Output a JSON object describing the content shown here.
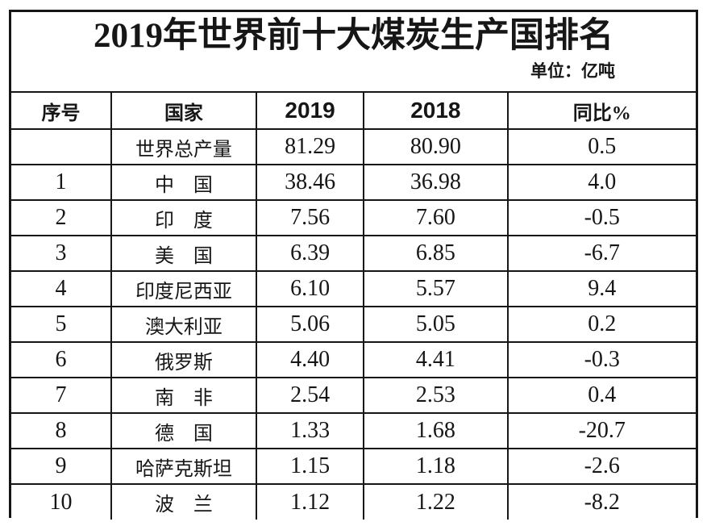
{
  "table": {
    "title": "2019年世界前十大煤炭生产国排名",
    "unit_label": "单位：亿吨",
    "columns": [
      "序号",
      "国家",
      "2019",
      "2018",
      "同比%"
    ],
    "rows": [
      {
        "rank": "",
        "country": "世界总产量",
        "y2019": "81.29",
        "y2018": "80.90",
        "yoy": "0.5"
      },
      {
        "rank": "1",
        "country": "中　国",
        "y2019": "38.46",
        "y2018": "36.98",
        "yoy": "4.0"
      },
      {
        "rank": "2",
        "country": "印　度",
        "y2019": "7.56",
        "y2018": "7.60",
        "yoy": "-0.5"
      },
      {
        "rank": "3",
        "country": "美　国",
        "y2019": "6.39",
        "y2018": "6.85",
        "yoy": "-6.7"
      },
      {
        "rank": "4",
        "country": "印度尼西亚",
        "y2019": "6.10",
        "y2018": "5.57",
        "yoy": "9.4"
      },
      {
        "rank": "5",
        "country": "澳大利亚",
        "y2019": "5.06",
        "y2018": "5.05",
        "yoy": "0.2"
      },
      {
        "rank": "6",
        "country": "俄罗斯",
        "y2019": "4.40",
        "y2018": "4.41",
        "yoy": "-0.3"
      },
      {
        "rank": "7",
        "country": "南　非",
        "y2019": "2.54",
        "y2018": "2.53",
        "yoy": "0.4"
      },
      {
        "rank": "8",
        "country": "德　国",
        "y2019": "1.33",
        "y2018": "1.68",
        "yoy": "-20.7"
      },
      {
        "rank": "9",
        "country": "哈萨克斯坦",
        "y2019": "1.15",
        "y2018": "1.18",
        "yoy": "-2.6"
      },
      {
        "rank": "10",
        "country": "波　兰",
        "y2019": "1.12",
        "y2018": "1.22",
        "yoy": "-8.2"
      }
    ]
  },
  "chart_data": {
    "type": "table",
    "title": "2019年世界前十大煤炭生产国排名",
    "unit": "亿吨",
    "columns": [
      "序号",
      "国家",
      "2019",
      "2018",
      "同比%"
    ],
    "rows": [
      {
        "rank": null,
        "country": "世界总产量",
        "production_2019": 81.29,
        "production_2018": 80.9,
        "yoy_percent": 0.5
      },
      {
        "rank": 1,
        "country": "中国",
        "production_2019": 38.46,
        "production_2018": 36.98,
        "yoy_percent": 4.0
      },
      {
        "rank": 2,
        "country": "印度",
        "production_2019": 7.56,
        "production_2018": 7.6,
        "yoy_percent": -0.5
      },
      {
        "rank": 3,
        "country": "美国",
        "production_2019": 6.39,
        "production_2018": 6.85,
        "yoy_percent": -6.7
      },
      {
        "rank": 4,
        "country": "印度尼西亚",
        "production_2019": 6.1,
        "production_2018": 5.57,
        "yoy_percent": 9.4
      },
      {
        "rank": 5,
        "country": "澳大利亚",
        "production_2019": 5.06,
        "production_2018": 5.05,
        "yoy_percent": 0.2
      },
      {
        "rank": 6,
        "country": "俄罗斯",
        "production_2019": 4.4,
        "production_2018": 4.41,
        "yoy_percent": -0.3
      },
      {
        "rank": 7,
        "country": "南非",
        "production_2019": 2.54,
        "production_2018": 2.53,
        "yoy_percent": 0.4
      },
      {
        "rank": 8,
        "country": "德国",
        "production_2019": 1.33,
        "production_2018": 1.68,
        "yoy_percent": -20.7
      },
      {
        "rank": 9,
        "country": "哈萨克斯坦",
        "production_2019": 1.15,
        "production_2018": 1.18,
        "yoy_percent": -2.6
      },
      {
        "rank": 10,
        "country": "波兰",
        "production_2019": 1.12,
        "production_2018": 1.22,
        "yoy_percent": -8.2
      }
    ]
  }
}
